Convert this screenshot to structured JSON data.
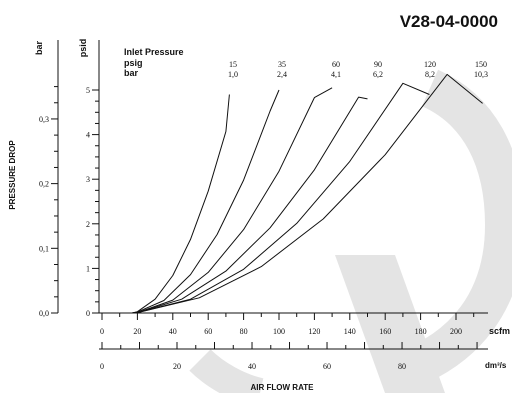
{
  "header": {
    "code": "V28-04-0000"
  },
  "chart_data": {
    "type": "line",
    "title": "",
    "xlabel": "AIR FLOW RATE",
    "ylabel": "PRESSURE DROP",
    "x_unit_primary": "scfm",
    "x_unit_secondary": "dm³/s",
    "y_unit_primary": "psid",
    "y_unit_secondary": "bar",
    "xlim": [
      0,
      220
    ],
    "ylim": [
      0,
      5.4
    ],
    "x_ticks_scfm": [
      "0",
      "20",
      "40",
      "60",
      "80",
      "100",
      "120",
      "140",
      "160",
      "180",
      "200"
    ],
    "x_ticks_dms": [
      "0",
      "20",
      "40",
      "60",
      "80"
    ],
    "y_ticks_psid": [
      "0",
      "1",
      "2",
      "3",
      "4",
      "5"
    ],
    "y_ticks_bar": [
      "0,0",
      "0,1",
      "0,2",
      "0,3"
    ],
    "legend_title": "Inlet Pressure",
    "legend_row1": "psig",
    "legend_row2": "bar",
    "grid": false,
    "series": [
      {
        "name": "15",
        "bar": "1,0",
        "x": [
          17,
          20,
          30,
          40,
          50,
          60,
          70,
          72
        ],
        "y": [
          0,
          0.03,
          0.31,
          0.84,
          1.65,
          2.73,
          4.07,
          4.9
        ]
      },
      {
        "name": "35",
        "bar": "2,4",
        "x": [
          17,
          20,
          35,
          50,
          65,
          80,
          95,
          100
        ],
        "y": [
          0,
          0.02,
          0.28,
          0.86,
          1.76,
          2.98,
          4.53,
          5.0
        ]
      },
      {
        "name": "60",
        "bar": "4,1",
        "x": [
          17,
          20,
          40,
          60,
          80,
          100,
          120,
          130
        ],
        "y": [
          0,
          0.01,
          0.29,
          0.91,
          1.87,
          3.18,
          4.83,
          5.05
        ]
      },
      {
        "name": "90",
        "bar": "6,2",
        "x": [
          17,
          20,
          45,
          70,
          95,
          120,
          145,
          150
        ],
        "y": [
          0,
          0.01,
          0.31,
          0.94,
          1.91,
          3.21,
          4.84,
          4.8
        ]
      },
      {
        "name": "120",
        "bar": "8,2",
        "x": [
          17,
          20,
          50,
          80,
          110,
          140,
          170,
          185
        ],
        "y": [
          0,
          0.01,
          0.31,
          0.98,
          2.01,
          3.4,
          5.15,
          4.9
        ]
      },
      {
        "name": "150",
        "bar": "10,3",
        "x": [
          17,
          20,
          55,
          90,
          125,
          160,
          195,
          215
        ],
        "y": [
          0,
          0.01,
          0.34,
          1.04,
          2.11,
          3.55,
          5.35,
          4.7
        ]
      }
    ]
  }
}
